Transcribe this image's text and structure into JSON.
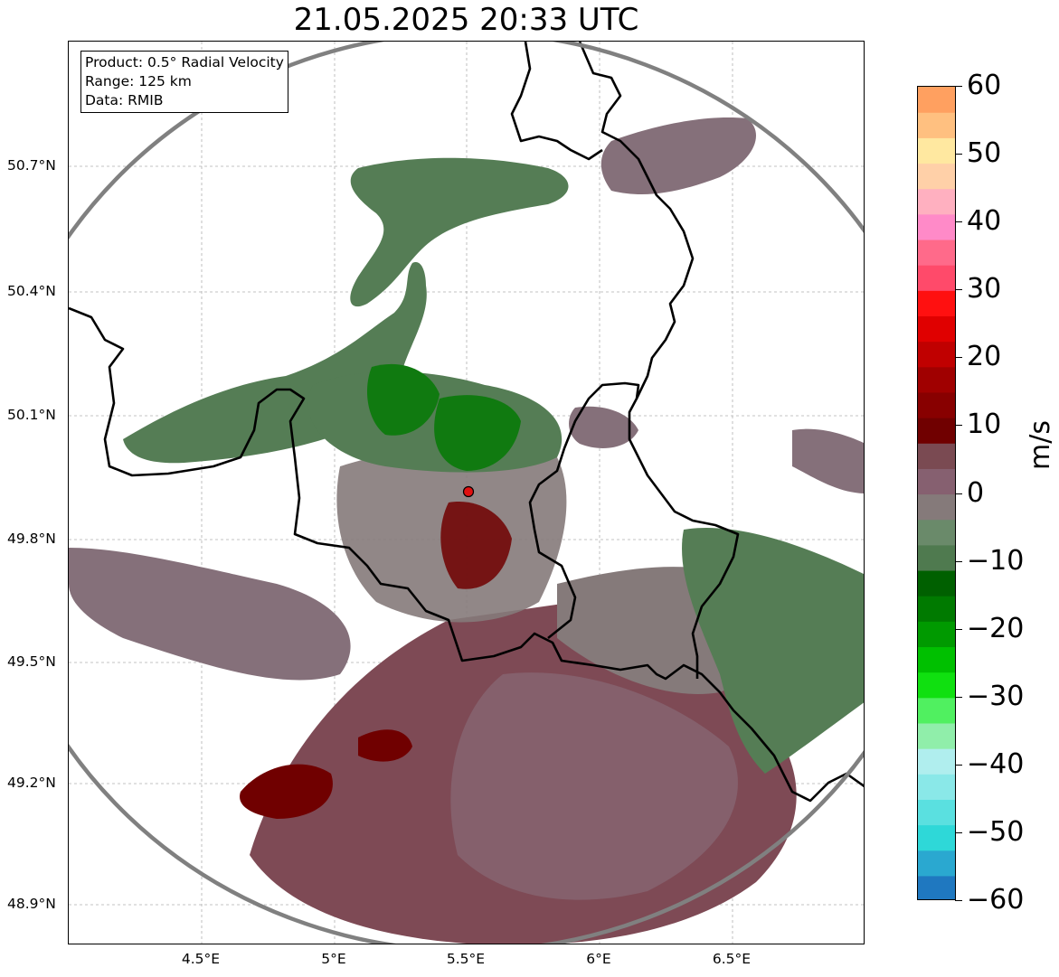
{
  "title": "21.05.2025 20:33 UTC",
  "info": {
    "product": "Product: 0.5° Radial Velocity",
    "range": "Range: 125 km",
    "data": "Data: RMIB"
  },
  "lat_ticks": [
    "50.7°N",
    "50.4°N",
    "50.1°N",
    "49.8°N",
    "49.5°N",
    "49.2°N",
    "48.9°N"
  ],
  "lon_ticks": [
    "4.5°E",
    "5°E",
    "5.5°E",
    "6°E",
    "6.5°E"
  ],
  "colorbar": {
    "unit": "m/s",
    "ticks": [
      "60",
      "50",
      "40",
      "30",
      "20",
      "10",
      "0",
      "−10",
      "−20",
      "−30",
      "−40",
      "−50",
      "−60"
    ],
    "range": [
      -60,
      60
    ],
    "colors_bottom_to_top": [
      "#1f78c0",
      "#2aa8d0",
      "#2ed8d8",
      "#5ae0e0",
      "#8ae8e8",
      "#b0eeee",
      "#90eeaa",
      "#50f060",
      "#10e010",
      "#00c000",
      "#009a00",
      "#007a00",
      "#006000",
      "#4f7a4f",
      "#6a8a6a",
      "#857a7a",
      "#866070",
      "#7a4a52",
      "#700000",
      "#880000",
      "#a00000",
      "#c00000",
      "#e00000",
      "#ff1010",
      "#ff4a6a",
      "#ff6a8a",
      "#ff8ac8",
      "#ffb0c0",
      "#ffd0a8",
      "#ffe8a0",
      "#ffc080",
      "#ffa060"
    ]
  },
  "radar": {
    "site": "radar-site",
    "site_color": "#e01010",
    "colors": {
      "inbound_green": "#557d55",
      "dark_green": "#107a10",
      "neutral_mauve": "#85707a",
      "outbound_maroon": "#7e4a55",
      "strong_outbound": "#700000",
      "range_ring": "#808080"
    }
  }
}
